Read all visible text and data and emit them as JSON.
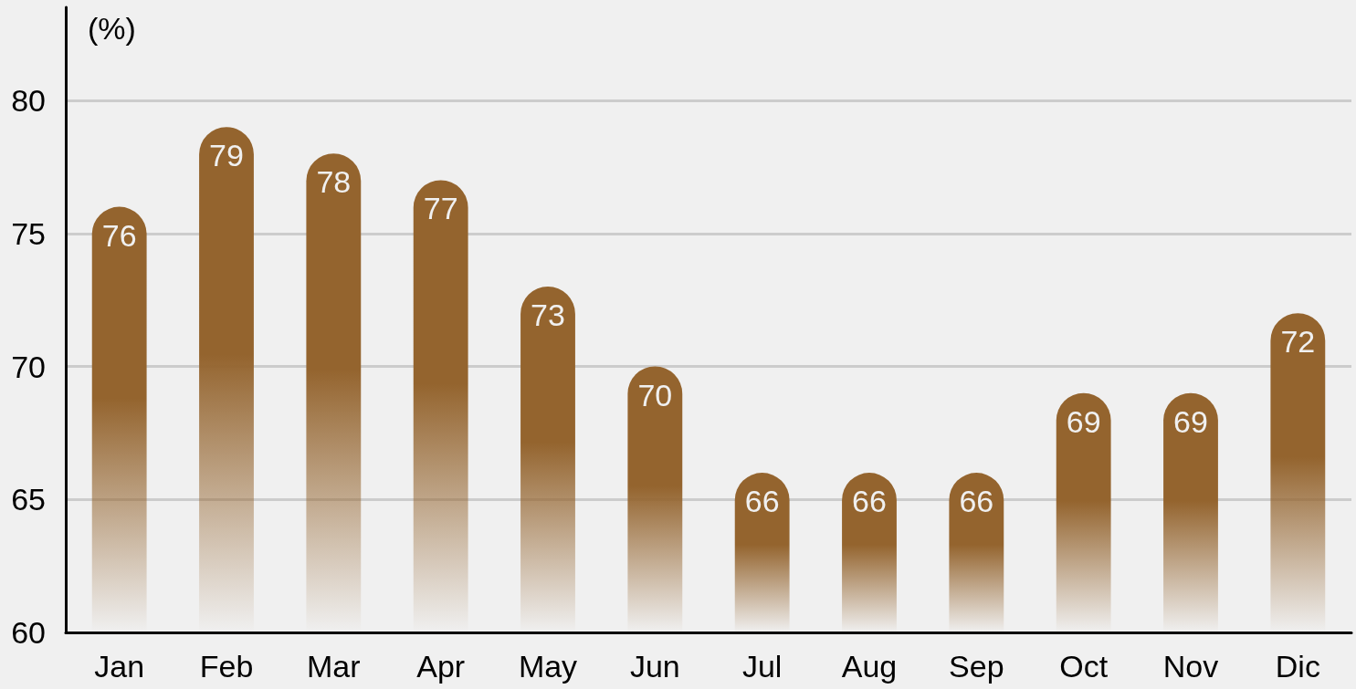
{
  "chart_data": {
    "type": "bar",
    "ylabel": "(%)",
    "categories": [
      "Jan",
      "Feb",
      "Mar",
      "Apr",
      "May",
      "Jun",
      "Jul",
      "Aug",
      "Sep",
      "Oct",
      "Nov",
      "Dic"
    ],
    "values": [
      76,
      79,
      78,
      77,
      73,
      70,
      66,
      66,
      66,
      69,
      69,
      72
    ],
    "color": "#94642e",
    "ylim": [
      60,
      83.5
    ],
    "yticks": [
      60,
      65,
      70,
      75,
      80
    ],
    "grid": "y",
    "data_labels": true
  }
}
